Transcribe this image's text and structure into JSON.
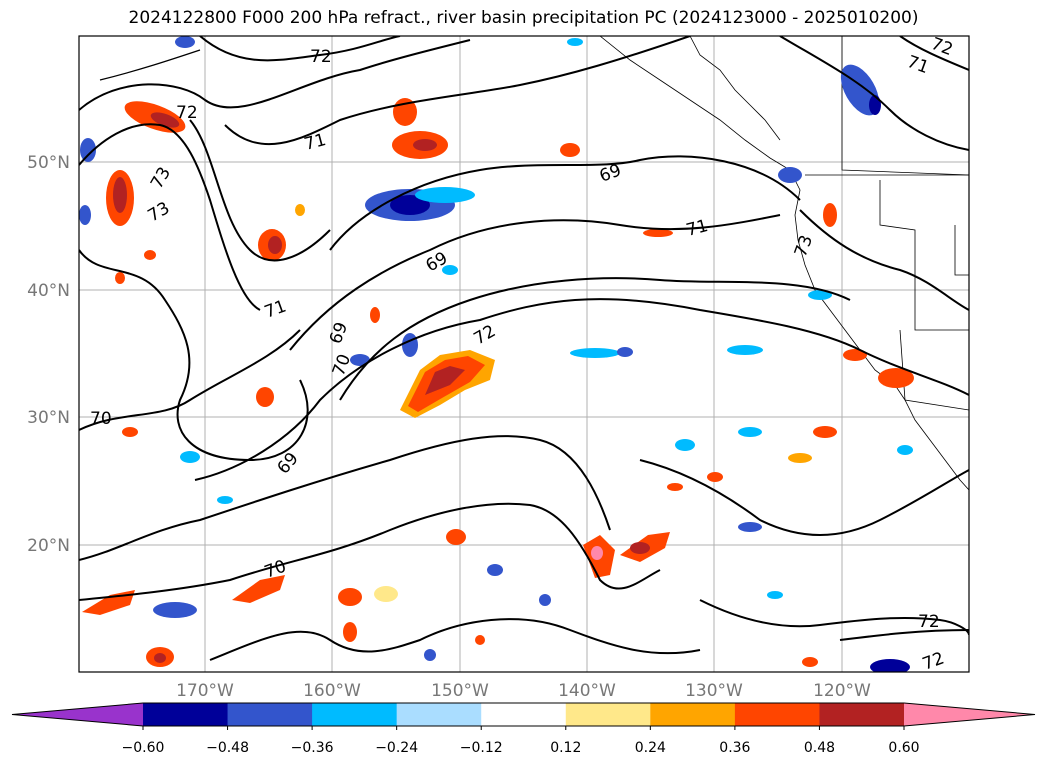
{
  "title": "2024122800 F000 200 hPa refract., river basin precipitation PC (2024123000 - 2025010200)",
  "map": {
    "lat_labels": [
      "50°N",
      "40°N",
      "30°N",
      "20°N"
    ],
    "lon_labels": [
      "170°W",
      "160°W",
      "150°W",
      "140°W",
      "130°W",
      "120°W"
    ],
    "contour_labels": [
      "72",
      "72",
      "73",
      "73",
      "71",
      "71",
      "71",
      "69",
      "69",
      "69",
      "69",
      "70",
      "70",
      "70",
      "72",
      "71",
      "73",
      "72",
      "72",
      "72"
    ]
  },
  "colorbar": {
    "colors": [
      "#9933cc",
      "#000099",
      "#3355cc",
      "#00bbff",
      "#aaddff",
      "#ffffff",
      "#ffe88a",
      "#ffa500",
      "#ff4500",
      "#b22222",
      "#ff88aa"
    ],
    "tick_labels": [
      "−0.60",
      "−0.48",
      "−0.36",
      "−0.24",
      "−0.12",
      "0.12",
      "0.24",
      "0.36",
      "0.48",
      "0.60"
    ]
  }
}
